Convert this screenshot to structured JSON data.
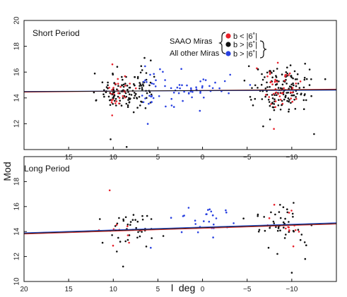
{
  "chart_data": {
    "type": "scatter",
    "xlabel": "l  deg",
    "ylabel": "Mod",
    "xlim": [
      20,
      -15
    ],
    "x_ticks": [
      20,
      15,
      10,
      5,
      0,
      -5,
      -10
    ],
    "x_tick_labels": [
      "20",
      "15",
      "10",
      "5",
      "0",
      "−5",
      "−10"
    ],
    "colors": {
      "red": "#e8202a",
      "black": "#111111",
      "blue": "#2840e0",
      "fit_red": "#e0303a",
      "fit_blue": "#3050e0",
      "fit_black": "#111111"
    },
    "legend": {
      "group1": "SAAO Miras",
      "group2": "All other Miras",
      "entries": [
        {
          "color": "red",
          "label": "b < |6˚|"
        },
        {
          "color": "black",
          "label": "b > |6˚|"
        },
        {
          "color": "blue",
          "label": "b > |6˚|"
        }
      ]
    },
    "panels": [
      {
        "title": "Short Period",
        "ylim": [
          10,
          20
        ],
        "y_ticks": [
          12,
          14,
          16,
          18,
          20
        ],
        "y_tick_labels": [
          "12",
          "14",
          "16",
          "18",
          "20"
        ],
        "fit_lines": [
          {
            "color": "fit_red",
            "x": [
              20,
              -15
            ],
            "y": [
              14.45,
              14.68
            ]
          },
          {
            "color": "fit_blue",
            "x": [
              20,
              -15
            ],
            "y": [
              14.5,
              14.6
            ]
          },
          {
            "color": "fit_black",
            "x": [
              20,
              -15
            ],
            "y": [
              14.48,
              14.64
            ]
          }
        ],
        "clusters": [
          {
            "color": "black",
            "n": 90,
            "xc": 9.3,
            "xs": 1.2,
            "yc": 14.5,
            "ys": 0.7,
            "seed": 11
          },
          {
            "color": "red",
            "n": 28,
            "xc": 9.6,
            "xs": 0.8,
            "yc": 14.5,
            "ys": 0.6,
            "seed": 12
          },
          {
            "color": "black",
            "n": 36,
            "xc": 6.8,
            "xs": 0.6,
            "yc": 14.8,
            "ys": 0.8,
            "seed": 13
          },
          {
            "color": "blue",
            "n": 22,
            "xc": 6.2,
            "xs": 0.6,
            "yc": 14.9,
            "ys": 0.9,
            "seed": 14
          },
          {
            "color": "blue",
            "n": 46,
            "xc": 1.6,
            "xs": 2.2,
            "yc": 14.7,
            "ys": 0.6,
            "seed": 15
          },
          {
            "color": "black",
            "n": 150,
            "xc": -8.8,
            "xs": 1.6,
            "yc": 14.6,
            "ys": 0.9,
            "seed": 16
          },
          {
            "color": "red",
            "n": 42,
            "xc": -8.7,
            "xs": 1.0,
            "yc": 14.6,
            "ys": 0.8,
            "seed": 17
          }
        ],
        "outliers": [
          {
            "color": "black",
            "x": 10.3,
            "y": 10.8
          },
          {
            "color": "black",
            "x": 8.5,
            "y": 10.2
          },
          {
            "color": "black",
            "x": 6.5,
            "y": 17.1
          },
          {
            "color": "black",
            "x": 5.8,
            "y": 16.9
          },
          {
            "color": "red",
            "x": 10.1,
            "y": 16.6
          },
          {
            "color": "black",
            "x": -6.8,
            "y": 11.8
          },
          {
            "color": "red",
            "x": -8.0,
            "y": 11.6
          },
          {
            "color": "black",
            "x": -12.5,
            "y": 11.2
          },
          {
            "color": "black",
            "x": -12.0,
            "y": 16.2
          },
          {
            "color": "blue",
            "x": 0.3,
            "y": 13.0
          },
          {
            "color": "blue",
            "x": 3.2,
            "y": 13.3
          },
          {
            "color": "blue",
            "x": -3.1,
            "y": 15.8
          }
        ]
      },
      {
        "title": "Long Period",
        "ylim": [
          10,
          20
        ],
        "y_ticks": [
          10,
          12,
          14,
          16,
          18
        ],
        "y_tick_labels": [
          "10",
          "12",
          "14",
          "16",
          "18"
        ],
        "fit_lines": [
          {
            "color": "fit_red",
            "x": [
              20,
              -15
            ],
            "y": [
              13.8,
              14.6
            ]
          },
          {
            "color": "fit_blue",
            "x": [
              20,
              -15
            ],
            "y": [
              13.9,
              14.7
            ]
          },
          {
            "color": "fit_black",
            "x": [
              20,
              -15
            ],
            "y": [
              13.85,
              14.65
            ]
          }
        ],
        "clusters": [
          {
            "color": "black",
            "n": 40,
            "xc": 8.2,
            "xs": 1.5,
            "yc": 14.2,
            "ys": 0.6,
            "seed": 21
          },
          {
            "color": "red",
            "n": 10,
            "xc": 8.7,
            "xs": 1.3,
            "yc": 14.0,
            "ys": 0.6,
            "seed": 22
          },
          {
            "color": "blue",
            "n": 26,
            "xc": 0.3,
            "xs": 1.4,
            "yc": 14.8,
            "ys": 0.5,
            "seed": 23
          },
          {
            "color": "black",
            "n": 46,
            "xc": -9.2,
            "xs": 1.5,
            "yc": 14.3,
            "ys": 0.9,
            "seed": 24
          },
          {
            "color": "red",
            "n": 14,
            "xc": -9.2,
            "xs": 1.0,
            "yc": 14.2,
            "ys": 0.7,
            "seed": 25
          }
        ],
        "outliers": [
          {
            "color": "red",
            "x": 10.4,
            "y": 17.3
          },
          {
            "color": "black",
            "x": 8.9,
            "y": 11.2
          },
          {
            "color": "black",
            "x": 9.6,
            "y": 12.4
          },
          {
            "color": "black",
            "x": 11.2,
            "y": 13.1
          },
          {
            "color": "black",
            "x": 11.5,
            "y": 15.0
          },
          {
            "color": "black",
            "x": 6.3,
            "y": 12.8
          },
          {
            "color": "blue",
            "x": 5.8,
            "y": 12.7
          },
          {
            "color": "blue",
            "x": -2.6,
            "y": 15.7
          },
          {
            "color": "black",
            "x": -10.0,
            "y": 10.7
          },
          {
            "color": "black",
            "x": -10.2,
            "y": 16.3
          },
          {
            "color": "black",
            "x": -11.5,
            "y": 11.8
          },
          {
            "color": "black",
            "x": -7.4,
            "y": 12.7
          }
        ]
      }
    ]
  }
}
